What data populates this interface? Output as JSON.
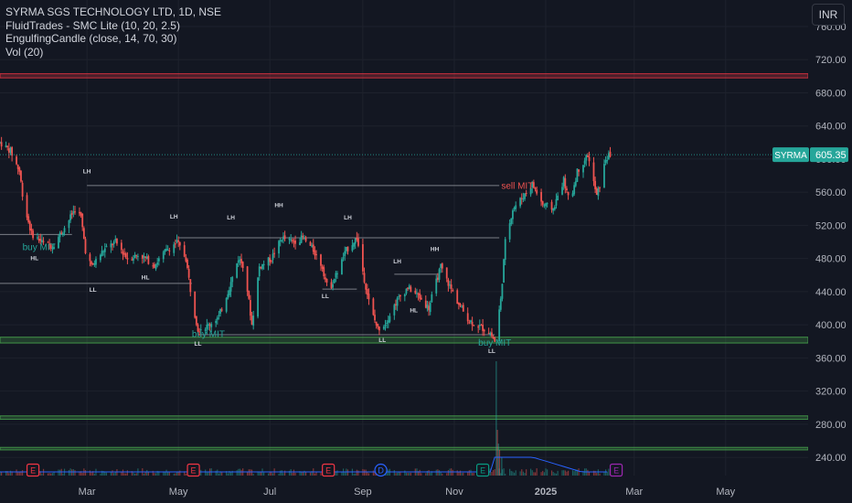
{
  "legend": {
    "title": "SYRMA SGS TECHNOLOGY LTD, 1D, NSE",
    "lines": [
      "FluidTrades - SMC Lite  (10, 20, 2.5)",
      "EngulfingCandle (close, 14, 70, 30)",
      "Vol (20)"
    ]
  },
  "currency": "INR",
  "colors": {
    "background": "#131722",
    "up": "#26a69a",
    "down": "#ef5350",
    "grid": "#1e222d",
    "axis_text": "#b2b5be",
    "volume_avg": "#2962ff"
  },
  "chart_data": {
    "type": "candlestick",
    "symbol": "SYRMA",
    "last_price": "605.35",
    "y_ticks": [
      240,
      280,
      320,
      360,
      400,
      440,
      480,
      520,
      560,
      600,
      640,
      680,
      720,
      760
    ],
    "y_tick_labels": [
      "240.00",
      "280.00",
      "320.00",
      "360.00",
      "400.00",
      "440.00",
      "480.00",
      "520.00",
      "560.00",
      "600.00",
      "640.00",
      "680.00",
      "720.00",
      "760.00"
    ],
    "ylim": [
      218,
      792
    ],
    "x_labels": [
      "Mar",
      "May",
      "Jul",
      "Sep",
      "Nov",
      "2025",
      "Mar",
      "May"
    ],
    "x_label_dates": [
      "2024-03-01",
      "2024-05-01",
      "2024-07-01",
      "2024-09-01",
      "2024-11-01",
      "2025-01-01",
      "2025-03-01",
      "2025-05-01"
    ],
    "xlim": [
      "2024-01-03",
      "2025-06-25"
    ],
    "price_path": [
      [
        "2024-01-03",
        620
      ],
      [
        "2024-01-10",
        610
      ],
      [
        "2024-01-16",
        585
      ],
      [
        "2024-01-19",
        545
      ],
      [
        "2024-01-24",
        510
      ],
      [
        "2024-01-31",
        500
      ],
      [
        "2024-02-07",
        495
      ],
      [
        "2024-02-16",
        520
      ],
      [
        "2024-02-22",
        540
      ],
      [
        "2024-02-26",
        530
      ],
      [
        "2024-02-29",
        490
      ],
      [
        "2024-03-04",
        470
      ],
      [
        "2024-03-12",
        490
      ],
      [
        "2024-03-20",
        500
      ],
      [
        "2024-03-28",
        480
      ],
      [
        "2024-04-05",
        485
      ],
      [
        "2024-04-15",
        472
      ],
      [
        "2024-04-22",
        488
      ],
      [
        "2024-04-30",
        500
      ],
      [
        "2024-05-06",
        480
      ],
      [
        "2024-05-10",
        430
      ],
      [
        "2024-05-14",
        395
      ],
      [
        "2024-05-20",
        398
      ],
      [
        "2024-05-28",
        410
      ],
      [
        "2024-06-04",
        445
      ],
      [
        "2024-06-10",
        480
      ],
      [
        "2024-06-14",
        470
      ],
      [
        "2024-06-19",
        400
      ],
      [
        "2024-06-24",
        470
      ],
      [
        "2024-07-02",
        480
      ],
      [
        "2024-07-09",
        505
      ],
      [
        "2024-07-16",
        500
      ],
      [
        "2024-07-23",
        505
      ],
      [
        "2024-07-30",
        490
      ],
      [
        "2024-08-05",
        470
      ],
      [
        "2024-08-09",
        440
      ],
      [
        "2024-08-14",
        460
      ],
      [
        "2024-08-21",
        490
      ],
      [
        "2024-08-28",
        505
      ],
      [
        "2024-09-02",
        455
      ],
      [
        "2024-09-06",
        420
      ],
      [
        "2024-09-11",
        395
      ],
      [
        "2024-09-16",
        402
      ],
      [
        "2024-09-24",
        430
      ],
      [
        "2024-10-01",
        445
      ],
      [
        "2024-10-08",
        435
      ],
      [
        "2024-10-15",
        420
      ],
      [
        "2024-10-18",
        440
      ],
      [
        "2024-10-23",
        470
      ],
      [
        "2024-10-28",
        450
      ],
      [
        "2024-11-04",
        425
      ],
      [
        "2024-11-11",
        405
      ],
      [
        "2024-11-18",
        398
      ],
      [
        "2024-11-25",
        390
      ],
      [
        "2024-11-28",
        380
      ],
      [
        "2024-12-02",
        430
      ],
      [
        "2024-12-05",
        500
      ],
      [
        "2024-12-10",
        540
      ],
      [
        "2024-12-17",
        555
      ],
      [
        "2024-12-23",
        570
      ],
      [
        "2024-12-30",
        545
      ],
      [
        "2025-01-06",
        540
      ],
      [
        "2025-01-13",
        575
      ],
      [
        "2025-01-17",
        545
      ],
      [
        "2025-01-22",
        585
      ],
      [
        "2025-01-29",
        605
      ],
      [
        "2025-02-04",
        555
      ],
      [
        "2025-02-07",
        575
      ],
      [
        "2025-02-10",
        600
      ],
      [
        "2025-02-13",
        605
      ]
    ],
    "horizontal_zones": [
      {
        "kind": "supply",
        "from": 698,
        "to": 703,
        "color": "#f23645"
      },
      {
        "kind": "demand",
        "from": 378,
        "to": 385,
        "color": "#4caf50"
      },
      {
        "kind": "demand",
        "from": 286,
        "to": 290,
        "color": "#4caf50"
      },
      {
        "kind": "demand",
        "from": 249,
        "to": 252,
        "color": "#4caf50"
      }
    ],
    "structure_lines": [
      {
        "x1": "2024-03-01",
        "x2": "2024-12-01",
        "y": 568
      },
      {
        "x1": "2024-01-03",
        "x2": "2024-02-20",
        "y": 509
      },
      {
        "x1": "2024-01-03",
        "x2": "2024-05-10",
        "y": 450
      },
      {
        "x1": "2024-05-01",
        "x2": "2024-12-01",
        "y": 505
      },
      {
        "x1": "2024-05-14",
        "x2": "2024-11-28",
        "y": 388
      },
      {
        "x1": "2024-08-05",
        "x2": "2024-08-28",
        "y": 443
      },
      {
        "x1": "2024-09-22",
        "x2": "2024-10-21",
        "y": 461
      }
    ],
    "swing_labels": [
      {
        "text": "LH",
        "date": "2024-03-01",
        "y": 583
      },
      {
        "text": "HL",
        "date": "2024-01-26",
        "y": 478
      },
      {
        "text": "LL",
        "date": "2024-03-05",
        "y": 440
      },
      {
        "text": "HL",
        "date": "2024-04-09",
        "y": 455
      },
      {
        "text": "LH",
        "date": "2024-04-28",
        "y": 528
      },
      {
        "text": "LL",
        "date": "2024-05-14",
        "y": 375
      },
      {
        "text": "LH",
        "date": "2024-06-05",
        "y": 527
      },
      {
        "text": "HH",
        "date": "2024-07-07",
        "y": 542
      },
      {
        "text": "LH",
        "date": "2024-08-22",
        "y": 527
      },
      {
        "text": "LL",
        "date": "2024-08-07",
        "y": 432
      },
      {
        "text": "LL",
        "date": "2024-09-14",
        "y": 379
      },
      {
        "text": "LH",
        "date": "2024-09-24",
        "y": 474
      },
      {
        "text": "HH",
        "date": "2024-10-19",
        "y": 489
      },
      {
        "text": "HL",
        "date": "2024-10-05",
        "y": 415
      },
      {
        "text": "LL",
        "date": "2024-11-26",
        "y": 366
      }
    ],
    "signal_labels": [
      {
        "text": "buy MIT",
        "date": "2024-01-29",
        "y": 490,
        "color": "#26a69a"
      },
      {
        "text": "buy MIT",
        "date": "2024-05-21",
        "y": 385,
        "color": "#26a69a"
      },
      {
        "text": "buy MIT",
        "date": "2024-11-28",
        "y": 375,
        "color": "#26a69a"
      },
      {
        "text": "sell MIT",
        "date": "2024-12-13",
        "y": 564,
        "color": "#ef5350"
      }
    ],
    "event_markers": [
      {
        "label": "E",
        "date": "2024-01-25",
        "color": "#f23645"
      },
      {
        "label": "E",
        "date": "2024-05-11",
        "color": "#f23645"
      },
      {
        "label": "E",
        "date": "2024-08-09",
        "color": "#f23645"
      },
      {
        "label": "D",
        "date": "2024-09-13",
        "color": "#2962ff"
      },
      {
        "label": "E",
        "date": "2024-11-20",
        "color": "#089981"
      },
      {
        "label": "E",
        "date": "2025-02-17",
        "color": "#9c27b0"
      }
    ],
    "volume_spike": {
      "date": "2024-11-29",
      "relative_height": 1.0
    }
  }
}
